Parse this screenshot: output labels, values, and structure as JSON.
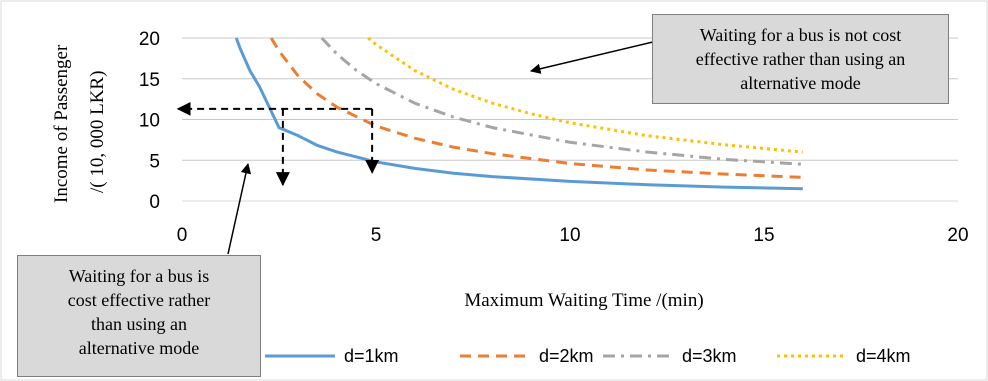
{
  "chart_data": {
    "type": "line",
    "title": "",
    "xlabel": "Maximum Waiting Time /(min)",
    "ylabel_line1": "Income of Passenger",
    "ylabel_line2": "/( 10, 000 LKR)",
    "xlim": [
      0,
      20
    ],
    "ylim": [
      0,
      20
    ],
    "x_ticks": [
      "0",
      "5",
      "10",
      "15",
      "20"
    ],
    "y_ticks": [
      "0",
      "5",
      "10",
      "15",
      "20"
    ],
    "grid": "horizontal",
    "legend_position": "bottom",
    "series": [
      {
        "name": "d=1km",
        "color": "#5b9bd5",
        "dash": "solid",
        "x": [
          1.4,
          1.5,
          1.75,
          2,
          2.5,
          3,
          3.5,
          4,
          5,
          6,
          7,
          8,
          10,
          12,
          14,
          16
        ],
        "y": [
          20,
          18.7,
          16,
          14,
          9.0,
          8.0,
          6.8,
          6.0,
          4.8,
          4.0,
          3.4,
          3.0,
          2.4,
          2.0,
          1.7,
          1.5
        ]
      },
      {
        "name": "d=2km",
        "color": "#ed7d31",
        "dash": "dashed",
        "x": [
          2.3,
          2.5,
          3,
          3.5,
          4,
          5,
          6,
          7,
          8,
          10,
          12,
          14,
          16
        ],
        "y": [
          20,
          18.4,
          15.3,
          13.1,
          11.5,
          9.2,
          7.7,
          6.6,
          5.8,
          4.6,
          3.8,
          3.3,
          2.9
        ]
      },
      {
        "name": "d=3km",
        "color": "#a5a5a5",
        "dash": "dashdot",
        "x": [
          3.6,
          4,
          4.5,
          5,
          6,
          7,
          8,
          10,
          12,
          14,
          16
        ],
        "y": [
          20,
          18,
          16,
          14.4,
          12,
          10.3,
          9,
          7.2,
          6.0,
          5.1,
          4.5
        ]
      },
      {
        "name": "d=4km",
        "color": "#ffc000",
        "dash": "dotted",
        "x": [
          4.8,
          5,
          6,
          7,
          8,
          9,
          10,
          12,
          14,
          16
        ],
        "y": [
          20,
          19.2,
          16,
          13.7,
          12,
          10.7,
          9.6,
          8.0,
          6.9,
          6.0
        ]
      }
    ],
    "annotations": [
      {
        "text": "Waiting for a bus is not cost effective rather than using an alternative mode"
      },
      {
        "text": "Waiting for a bus is cost effective rather than using an alternative mode"
      }
    ],
    "guides": [
      {
        "from": [
          4.9,
          11.3
        ],
        "to": [
          -0.1,
          11.3
        ]
      },
      {
        "from": [
          4.9,
          11.3
        ],
        "to": [
          4.9,
          3.5
        ]
      },
      {
        "from": [
          2.6,
          11.3
        ],
        "to": [
          2.6,
          2.0
        ]
      }
    ]
  },
  "callouts": {
    "top_lines": [
      "Waiting for a bus is not cost",
      "effective rather than using an",
      "alternative mode"
    ],
    "bottom_lines": [
      "Waiting for a bus is",
      "cost effective rather",
      "than using an",
      "alternative mode"
    ]
  }
}
